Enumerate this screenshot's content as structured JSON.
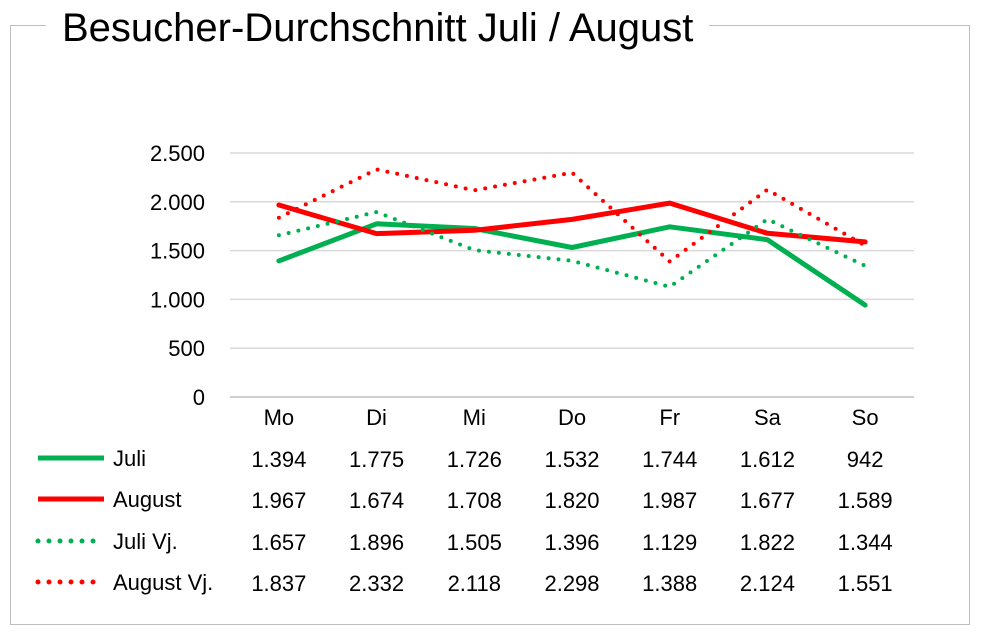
{
  "chart_data": {
    "type": "line",
    "title": "Besucher-Durchschnitt Juli / August",
    "categories": [
      "Mo",
      "Di",
      "Mi",
      "Do",
      "Fr",
      "Sa",
      "So"
    ],
    "ylim": [
      0,
      2500
    ],
    "yticks": [
      0,
      500,
      1000,
      1500,
      2000,
      2500
    ],
    "ytick_labels": [
      "0",
      "500",
      "1.000",
      "1.500",
      "2.000",
      "2.500"
    ],
    "grid": true,
    "legend": "data-table-below",
    "series": [
      {
        "name": "Juli",
        "color": "#00b050",
        "style": "solid",
        "values": [
          1394,
          1775,
          1726,
          1532,
          1744,
          1612,
          942
        ],
        "labels": [
          "1.394",
          "1.775",
          "1.726",
          "1.532",
          "1.744",
          "1.612",
          "942"
        ]
      },
      {
        "name": "August",
        "color": "#ff0000",
        "style": "solid",
        "values": [
          1967,
          1674,
          1708,
          1820,
          1987,
          1677,
          1589
        ],
        "labels": [
          "1.967",
          "1.674",
          "1.708",
          "1.820",
          "1.987",
          "1.677",
          "1.589"
        ]
      },
      {
        "name": "Juli Vj.",
        "color": "#00b050",
        "style": "dotted",
        "values": [
          1657,
          1896,
          1505,
          1396,
          1129,
          1822,
          1344
        ],
        "labels": [
          "1.657",
          "1.896",
          "1.505",
          "1.396",
          "1.129",
          "1.822",
          "1.344"
        ]
      },
      {
        "name": "August Vj.",
        "color": "#ff0000",
        "style": "dotted",
        "values": [
          1837,
          2332,
          2118,
          2298,
          1388,
          2124,
          1551
        ],
        "labels": [
          "1.837",
          "2.332",
          "2.118",
          "2.298",
          "1.388",
          "2.124",
          "1.551"
        ]
      }
    ]
  }
}
